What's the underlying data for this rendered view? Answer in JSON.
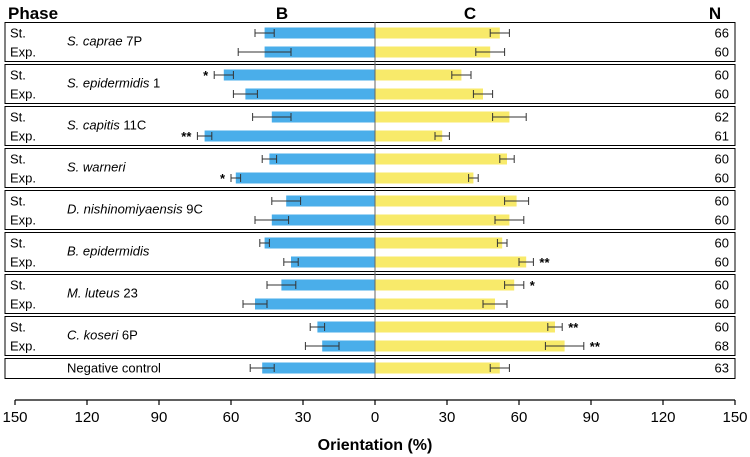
{
  "chart_data": {
    "type": "bar",
    "orientation": "horizontal-diverging",
    "headers": {
      "phase": "Phase",
      "left": "B",
      "right": "C",
      "n": "N"
    },
    "xlabel": "Orientation (%)",
    "xlim": [
      -150,
      150
    ],
    "xticks": [
      {
        "v": -150,
        "t": "150"
      },
      {
        "v": -120,
        "t": "120"
      },
      {
        "v": -90,
        "t": "90"
      },
      {
        "v": -60,
        "t": "60"
      },
      {
        "v": -30,
        "t": "30"
      },
      {
        "v": 0,
        "t": "0"
      },
      {
        "v": 30,
        "t": "30"
      },
      {
        "v": 60,
        "t": "60"
      },
      {
        "v": 90,
        "t": "90"
      },
      {
        "v": 120,
        "t": "120"
      },
      {
        "v": 150,
        "t": "150"
      }
    ],
    "colors": {
      "B": "#4aaeea",
      "C": "#f8ea6a"
    },
    "groups": [
      {
        "name_italic": "S. caprae",
        "name_plain": " 7P",
        "rows": [
          {
            "phase": "St.",
            "B": 46,
            "B_err": 4,
            "C": 52,
            "C_err": 4,
            "sigB": "",
            "sigC": "",
            "N": "66"
          },
          {
            "phase": "Exp.",
            "B": 46,
            "B_err": 11,
            "C": 48,
            "C_err": 6,
            "sigB": "",
            "sigC": "",
            "N": "60"
          }
        ]
      },
      {
        "name_italic": "S. epidermidis",
        "name_plain": " 1",
        "rows": [
          {
            "phase": "St.",
            "B": 63,
            "B_err": 4,
            "C": 36,
            "C_err": 4,
            "sigB": "*",
            "sigC": "",
            "N": "60"
          },
          {
            "phase": "Exp.",
            "B": 54,
            "B_err": 5,
            "C": 45,
            "C_err": 4,
            "sigB": "",
            "sigC": "",
            "N": "60"
          }
        ]
      },
      {
        "name_italic": "S. capitis",
        "name_plain": " 11C",
        "rows": [
          {
            "phase": "St.",
            "B": 43,
            "B_err": 8,
            "C": 56,
            "C_err": 7,
            "sigB": "",
            "sigC": "",
            "N": "62"
          },
          {
            "phase": "Exp.",
            "B": 71,
            "B_err": 3,
            "C": 28,
            "C_err": 3,
            "sigB": "**",
            "sigC": "",
            "N": "61"
          }
        ]
      },
      {
        "name_italic": "S. warneri",
        "name_plain": "",
        "rows": [
          {
            "phase": "St.",
            "B": 44,
            "B_err": 3,
            "C": 55,
            "C_err": 3,
            "sigB": "",
            "sigC": "",
            "N": "60"
          },
          {
            "phase": "Exp.",
            "B": 58,
            "B_err": 2,
            "C": 41,
            "C_err": 2,
            "sigB": "*",
            "sigC": "",
            "N": "60"
          }
        ]
      },
      {
        "name_italic": "D. nishinomiyaensis",
        "name_plain": " 9C",
        "rows": [
          {
            "phase": "St.",
            "B": 37,
            "B_err": 6,
            "C": 59,
            "C_err": 5,
            "sigB": "",
            "sigC": "",
            "N": "60"
          },
          {
            "phase": "Exp.",
            "B": 43,
            "B_err": 7,
            "C": 56,
            "C_err": 6,
            "sigB": "",
            "sigC": "",
            "N": "60"
          }
        ]
      },
      {
        "name_italic": "B. epidermidis",
        "name_plain": "",
        "rows": [
          {
            "phase": "St.",
            "B": 46,
            "B_err": 2,
            "C": 53,
            "C_err": 2,
            "sigB": "",
            "sigC": "",
            "N": "60"
          },
          {
            "phase": "Exp.",
            "B": 35,
            "B_err": 3,
            "C": 63,
            "C_err": 3,
            "sigB": "",
            "sigC": "**",
            "N": "60"
          }
        ]
      },
      {
        "name_italic": "M. luteus",
        "name_plain": " 23",
        "rows": [
          {
            "phase": "St.",
            "B": 39,
            "B_err": 6,
            "C": 58,
            "C_err": 4,
            "sigB": "",
            "sigC": "*",
            "N": "60"
          },
          {
            "phase": "Exp.",
            "B": 50,
            "B_err": 5,
            "C": 50,
            "C_err": 5,
            "sigB": "",
            "sigC": "",
            "N": "60"
          }
        ]
      },
      {
        "name_italic": "C. koseri",
        "name_plain": " 6P",
        "rows": [
          {
            "phase": "St.",
            "B": 24,
            "B_err": 3,
            "C": 75,
            "C_err": 3,
            "sigB": "",
            "sigC": "**",
            "N": "60"
          },
          {
            "phase": "Exp.",
            "B": 22,
            "B_err": 7,
            "C": 79,
            "C_err": 8,
            "sigB": "",
            "sigC": "**",
            "N": "68"
          }
        ]
      },
      {
        "name_italic": "",
        "name_plain": "Negative control",
        "rows": [
          {
            "phase": "",
            "B": 47,
            "B_err": 5,
            "C": 52,
            "C_err": 4,
            "sigB": "",
            "sigC": "",
            "N": "63"
          }
        ]
      }
    ]
  }
}
